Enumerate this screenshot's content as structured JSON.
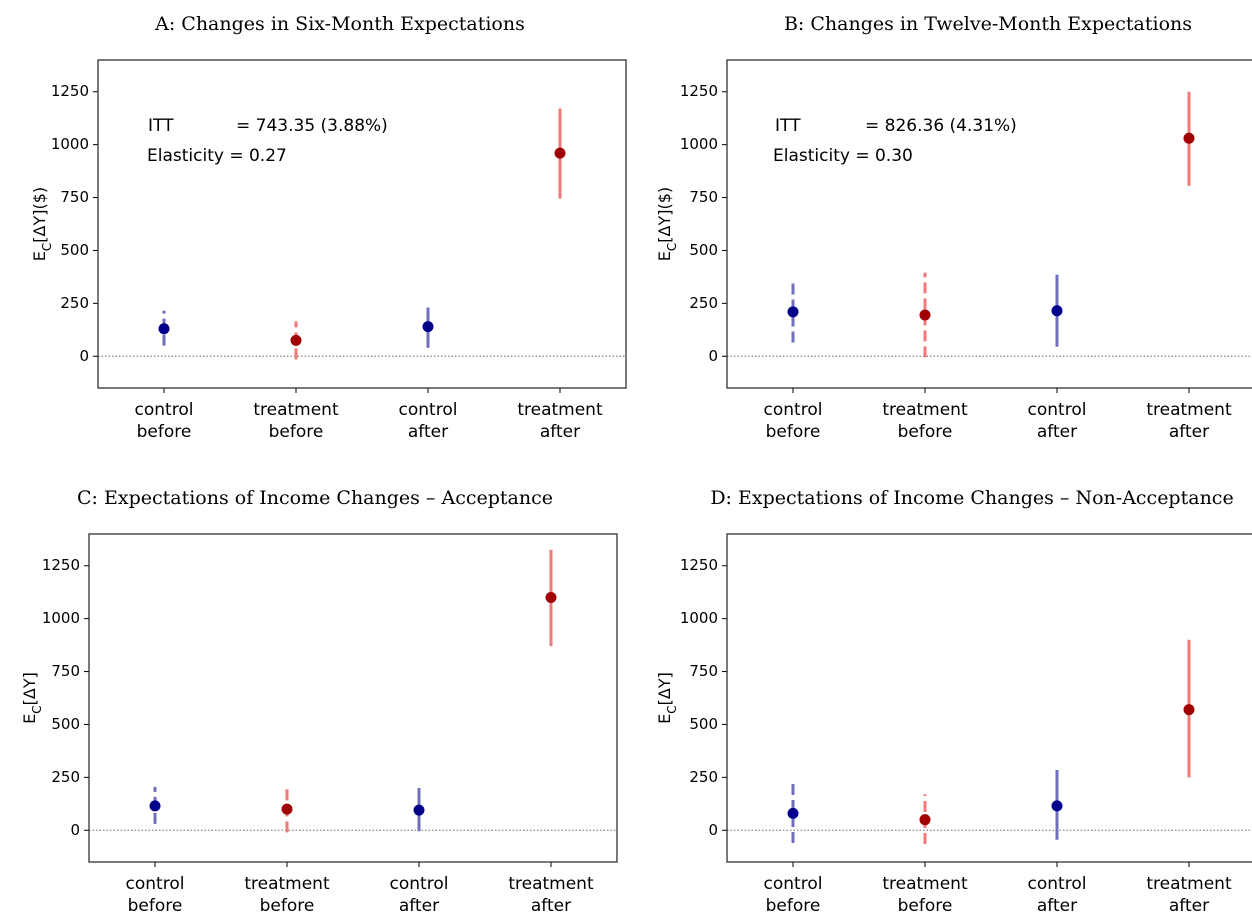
{
  "chart_data": [
    {
      "type": "errorbar",
      "title": "A: Changes in Six-Month Expectations",
      "ylabel_parts": [
        "E",
        "C",
        "[ΔY]($)"
      ],
      "categories": [
        [
          "control",
          "before"
        ],
        [
          "treatment",
          "before"
        ],
        [
          "control",
          "after"
        ],
        [
          "treatment",
          "after"
        ]
      ],
      "values": [
        130,
        75,
        140,
        960
      ],
      "ci": [
        [
          50,
          215
        ],
        [
          -15,
          165
        ],
        [
          40,
          230
        ],
        [
          745,
          1170
        ]
      ],
      "point_colors": [
        "#00008b",
        "#a00000",
        "#00008b",
        "#a00000"
      ],
      "line_colors": [
        "#6f6fbd",
        "#f07a7a",
        "#6f6fbd",
        "#f07a7a"
      ],
      "linestyles": [
        "dashed",
        "dashed",
        "solid",
        "solid"
      ],
      "ylim": [
        -150,
        1400
      ],
      "yticks": [
        0,
        250,
        500,
        750,
        1000,
        1250
      ],
      "hline": 0,
      "annotations": [
        "ITT",
        "= 743.35 (3.88%)",
        "Elasticity = 0.27"
      ]
    },
    {
      "type": "errorbar",
      "title": "B: Changes in Twelve-Month Expectations",
      "ylabel_parts": [
        "E",
        "C",
        "[ΔY]($)"
      ],
      "categories": [
        [
          "control",
          "before"
        ],
        [
          "treatment",
          "before"
        ],
        [
          "control",
          "after"
        ],
        [
          "treatment",
          "after"
        ]
      ],
      "values": [
        210,
        195,
        215,
        1030
      ],
      "ci": [
        [
          65,
          355
        ],
        [
          -5,
          395
        ],
        [
          45,
          385
        ],
        [
          805,
          1250
        ]
      ],
      "point_colors": [
        "#00008b",
        "#a00000",
        "#00008b",
        "#a00000"
      ],
      "line_colors": [
        "#6f6fbd",
        "#f07a7a",
        "#6f6fbd",
        "#f07a7a"
      ],
      "linestyles": [
        "dashed",
        "dashed",
        "solid",
        "solid"
      ],
      "ylim": [
        -150,
        1400
      ],
      "yticks": [
        0,
        250,
        500,
        750,
        1000,
        1250
      ],
      "hline": 0,
      "annotations": [
        "ITT",
        "= 826.36 (4.31%)",
        "Elasticity = 0.30"
      ]
    },
    {
      "type": "errorbar",
      "title": "C: Expectations of Income Changes – Acceptance",
      "ylabel_parts": [
        "E",
        "C",
        "[ΔY]"
      ],
      "categories": [
        [
          "control",
          "before"
        ],
        [
          "treatment",
          "before"
        ],
        [
          "control",
          "after"
        ],
        [
          "treatment",
          "after"
        ]
      ],
      "values": [
        115,
        100,
        95,
        1100
      ],
      "ci": [
        [
          30,
          205
        ],
        [
          -10,
          215
        ],
        [
          -5,
          200
        ],
        [
          870,
          1325
        ]
      ],
      "point_colors": [
        "#00008b",
        "#a00000",
        "#00008b",
        "#a00000"
      ],
      "line_colors": [
        "#6f6fbd",
        "#f07a7a",
        "#6f6fbd",
        "#f07a7a"
      ],
      "linestyles": [
        "dashed",
        "dashed",
        "solid",
        "solid"
      ],
      "ylim": [
        -150,
        1400
      ],
      "yticks": [
        0,
        250,
        500,
        750,
        1000,
        1250
      ],
      "hline": 0
    },
    {
      "type": "errorbar",
      "title": "D: Expectations of Income Changes – Non-Acceptance",
      "ylabel_parts": [
        "E",
        "C",
        "[ΔY]"
      ],
      "categories": [
        [
          "control",
          "before"
        ],
        [
          "treatment",
          "before"
        ],
        [
          "control",
          "after"
        ],
        [
          "treatment",
          "after"
        ]
      ],
      "values": [
        80,
        50,
        115,
        570
      ],
      "ci": [
        [
          -60,
          235
        ],
        [
          -65,
          170
        ],
        [
          -45,
          285
        ],
        [
          250,
          900
        ]
      ],
      "point_colors": [
        "#00008b",
        "#a00000",
        "#00008b",
        "#a00000"
      ],
      "line_colors": [
        "#6f6fbd",
        "#f07a7a",
        "#6f6fbd",
        "#f07a7a"
      ],
      "linestyles": [
        "dashed",
        "dashed",
        "solid",
        "solid"
      ],
      "ylim": [
        -150,
        1400
      ],
      "yticks": [
        0,
        250,
        500,
        750,
        1000,
        1250
      ],
      "hline": 0
    }
  ]
}
